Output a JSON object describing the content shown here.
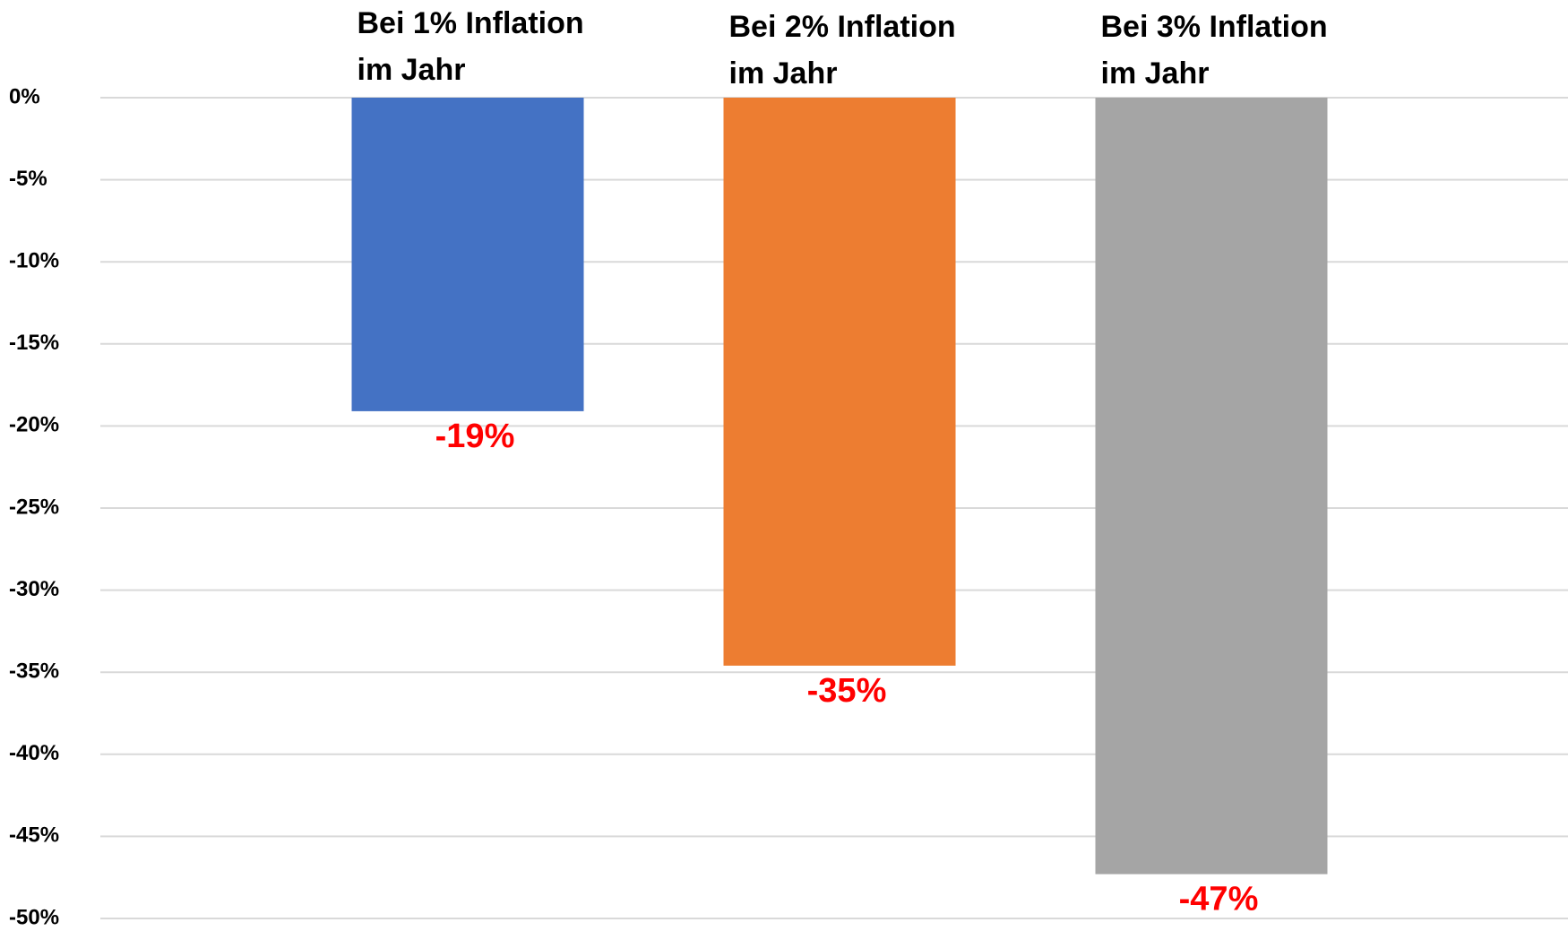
{
  "chart_data": {
    "type": "bar",
    "categories": [
      "Bei 1% Inflation im Jahr",
      "Bei 2% Inflation im Jahr",
      "Bei 3% Inflation im Jahr"
    ],
    "values": [
      -19.1,
      -34.6,
      -47.3
    ],
    "value_labels": [
      "-19%",
      "-35%",
      "-47%"
    ],
    "colors": [
      "#4472c4",
      "#ed7d31",
      "#a5a5a5"
    ],
    "value_label_color": "#ff0000",
    "ylim": [
      -50,
      0
    ],
    "yticks": [
      {
        "value": 0,
        "label": "0%"
      },
      {
        "value": -5,
        "label": "-5%"
      },
      {
        "value": -10,
        "label": "-10%"
      },
      {
        "value": -15,
        "label": "-15%"
      },
      {
        "value": -20,
        "label": "-20%"
      },
      {
        "value": -25,
        "label": "-25%"
      },
      {
        "value": -30,
        "label": "-30%"
      },
      {
        "value": -35,
        "label": "-35%"
      },
      {
        "value": -40,
        "label": "-40%"
      },
      {
        "value": -45,
        "label": "-45%"
      },
      {
        "value": -50,
        "label": "-50%"
      }
    ],
    "grid": true
  }
}
